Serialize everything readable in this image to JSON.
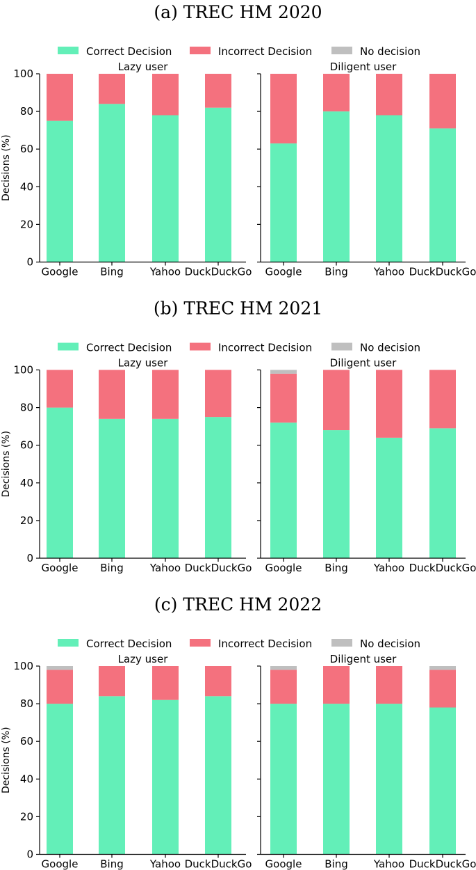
{
  "chart_data": [
    {
      "type": "bar",
      "stacked": true,
      "title": "(a) TREC HM 2020",
      "legend": {
        "placement": "top-center",
        "entries": [
          "Correct Decision",
          "Incorrect Decision",
          "No decision"
        ]
      },
      "ylabel": "Decisions (%)",
      "ylim": [
        0,
        100
      ],
      "yticks": [
        0,
        20,
        40,
        60,
        80,
        100
      ],
      "categories": [
        "Google",
        "Bing",
        "Yahoo",
        "DuckDuckGo"
      ],
      "panels": [
        {
          "subtitle": "Lazy user",
          "series": [
            {
              "name": "Correct Decision",
              "values": [
                75,
                84,
                78,
                82
              ]
            },
            {
              "name": "Incorrect Decision",
              "values": [
                25,
                16,
                22,
                18
              ]
            },
            {
              "name": "No decision",
              "values": [
                0,
                0,
                0,
                0
              ]
            }
          ]
        },
        {
          "subtitle": "Diligent user",
          "series": [
            {
              "name": "Correct Decision",
              "values": [
                63,
                80,
                78,
                71
              ]
            },
            {
              "name": "Incorrect Decision",
              "values": [
                37,
                20,
                22,
                29
              ]
            },
            {
              "name": "No decision",
              "values": [
                0,
                0,
                0,
                0
              ]
            }
          ]
        }
      ]
    },
    {
      "type": "bar",
      "stacked": true,
      "title": "(b) TREC HM 2021",
      "legend": {
        "placement": "top-center",
        "entries": [
          "Correct Decision",
          "Incorrect Decision",
          "No decision"
        ]
      },
      "ylabel": "Decisions (%)",
      "ylim": [
        0,
        100
      ],
      "yticks": [
        0,
        20,
        40,
        60,
        80,
        100
      ],
      "categories": [
        "Google",
        "Bing",
        "Yahoo",
        "DuckDuckGo"
      ],
      "panels": [
        {
          "subtitle": "Lazy user",
          "series": [
            {
              "name": "Correct Decision",
              "values": [
                80,
                74,
                74,
                75
              ]
            },
            {
              "name": "Incorrect Decision",
              "values": [
                20,
                26,
                26,
                25
              ]
            },
            {
              "name": "No decision",
              "values": [
                0,
                0,
                0,
                0
              ]
            }
          ]
        },
        {
          "subtitle": "Diligent user",
          "series": [
            {
              "name": "Correct Decision",
              "values": [
                72,
                68,
                64,
                69
              ]
            },
            {
              "name": "Incorrect Decision",
              "values": [
                26,
                32,
                36,
                31
              ]
            },
            {
              "name": "No decision",
              "values": [
                2,
                0,
                0,
                0
              ]
            }
          ]
        }
      ]
    },
    {
      "type": "bar",
      "stacked": true,
      "title": "(c) TREC HM 2022",
      "legend": {
        "placement": "top-center",
        "entries": [
          "Correct Decision",
          "Incorrect Decision",
          "No decision"
        ]
      },
      "ylabel": "Decisions (%)",
      "ylim": [
        0,
        100
      ],
      "yticks": [
        0,
        20,
        40,
        60,
        80,
        100
      ],
      "categories": [
        "Google",
        "Bing",
        "Yahoo",
        "DuckDuckGo"
      ],
      "panels": [
        {
          "subtitle": "Lazy user",
          "series": [
            {
              "name": "Correct Decision",
              "values": [
                80,
                84,
                82,
                84
              ]
            },
            {
              "name": "Incorrect Decision",
              "values": [
                18,
                16,
                18,
                16
              ]
            },
            {
              "name": "No decision",
              "values": [
                2,
                0,
                0,
                0
              ]
            }
          ]
        },
        {
          "subtitle": "Diligent user",
          "series": [
            {
              "name": "Correct Decision",
              "values": [
                80,
                80,
                80,
                78
              ]
            },
            {
              "name": "Incorrect Decision",
              "values": [
                18,
                20,
                20,
                20
              ]
            },
            {
              "name": "No decision",
              "values": [
                2,
                0,
                0,
                2
              ]
            }
          ]
        }
      ]
    }
  ],
  "colors": {
    "Correct Decision": "#63efb8",
    "Incorrect Decision": "#f4717e",
    "No decision": "#bfbfbf"
  }
}
